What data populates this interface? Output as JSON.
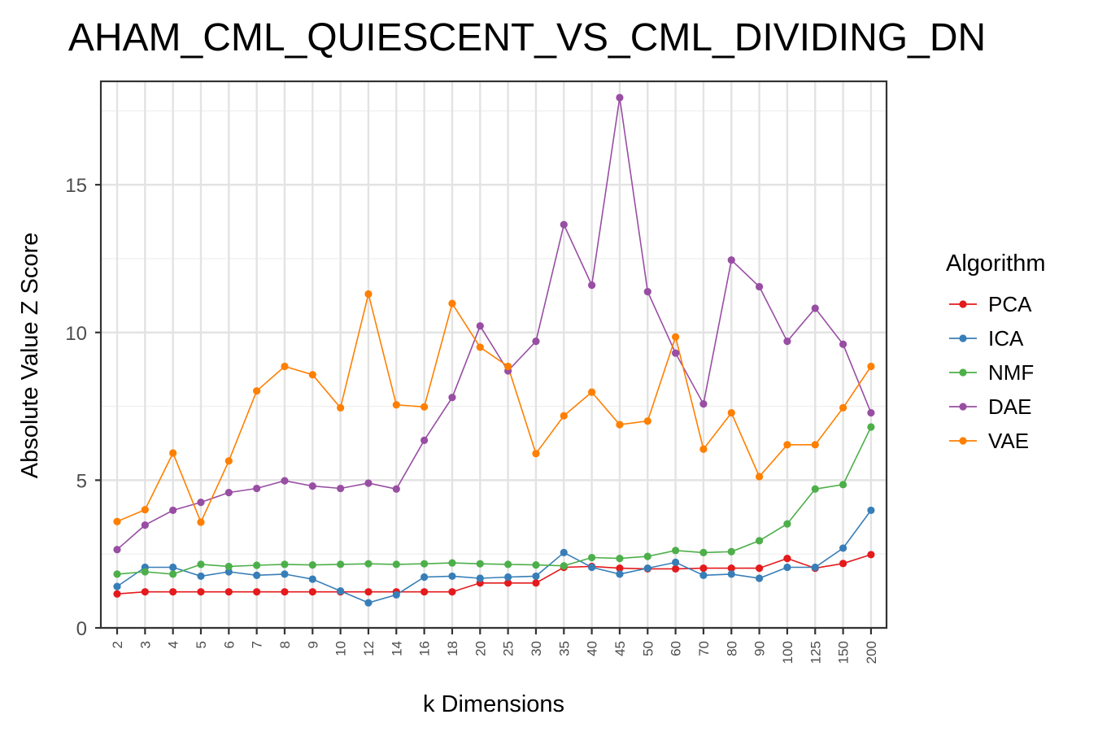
{
  "chart_data": {
    "type": "line",
    "title": "AHAM_CML_QUIESCENT_VS_CML_DIVIDING_DN",
    "xlabel": "k Dimensions",
    "ylabel": "Absolute Value Z Score",
    "categories": [
      "2",
      "3",
      "4",
      "5",
      "6",
      "7",
      "8",
      "9",
      "10",
      "12",
      "14",
      "16",
      "18",
      "20",
      "25",
      "30",
      "35",
      "40",
      "45",
      "50",
      "60",
      "70",
      "80",
      "90",
      "100",
      "125",
      "150",
      "200"
    ],
    "ylim": [
      0,
      18.5
    ],
    "yticks": [
      0,
      5,
      10,
      15
    ],
    "grid": true,
    "legend": {
      "title": "Algorithm",
      "position": "right"
    },
    "series": [
      {
        "name": "PCA",
        "color": "#e41a1c",
        "values": [
          1.15,
          1.22,
          1.22,
          1.22,
          1.22,
          1.22,
          1.22,
          1.22,
          1.22,
          1.22,
          1.22,
          1.22,
          1.22,
          1.52,
          1.52,
          1.52,
          2.05,
          2.08,
          2.02,
          2.0,
          2.0,
          2.02,
          2.02,
          2.02,
          2.35,
          2.02,
          2.18,
          2.48
        ]
      },
      {
        "name": "ICA",
        "color": "#377eb8",
        "values": [
          1.4,
          2.05,
          2.05,
          1.75,
          1.9,
          1.78,
          1.82,
          1.65,
          1.25,
          0.85,
          1.12,
          1.72,
          1.75,
          1.68,
          1.72,
          1.75,
          2.55,
          2.05,
          1.82,
          2.02,
          2.22,
          1.78,
          1.82,
          1.68,
          2.05,
          2.05,
          2.7,
          3.98
        ]
      },
      {
        "name": "NMF",
        "color": "#4daf4a",
        "values": [
          1.82,
          1.9,
          1.82,
          2.15,
          2.08,
          2.12,
          2.15,
          2.13,
          2.15,
          2.17,
          2.15,
          2.17,
          2.2,
          2.17,
          2.15,
          2.13,
          2.1,
          2.38,
          2.35,
          2.42,
          2.62,
          2.55,
          2.58,
          2.95,
          3.52,
          4.7,
          4.85,
          6.8
        ]
      },
      {
        "name": "DAE",
        "color": "#984ea3",
        "values": [
          2.65,
          3.48,
          3.98,
          4.25,
          4.58,
          4.72,
          4.98,
          4.8,
          4.72,
          4.9,
          4.7,
          6.35,
          7.8,
          10.22,
          8.7,
          9.7,
          13.65,
          11.6,
          17.95,
          11.38,
          9.3,
          7.58,
          12.45,
          11.55,
          9.7,
          10.82,
          9.6,
          7.28
        ]
      },
      {
        "name": "VAE",
        "color": "#ff7f00",
        "values": [
          3.6,
          4.0,
          5.92,
          3.58,
          5.65,
          8.02,
          8.85,
          8.57,
          7.45,
          11.3,
          7.55,
          7.48,
          10.98,
          9.5,
          8.85,
          5.9,
          7.18,
          7.98,
          6.88,
          7.0,
          9.85,
          6.05,
          7.28,
          5.12,
          6.2,
          6.2,
          7.45,
          8.85
        ]
      }
    ]
  }
}
